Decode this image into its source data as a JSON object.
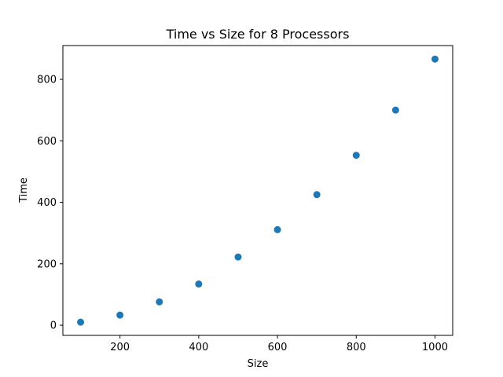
{
  "chart_data": {
    "type": "scatter",
    "title": "Time vs Size for 8 Processors",
    "xlabel": "Size",
    "ylabel": "Time",
    "x": [
      100,
      200,
      300,
      400,
      500,
      600,
      700,
      800,
      900,
      1000
    ],
    "y": [
      10,
      33,
      76,
      134,
      222,
      311,
      425,
      553,
      700,
      866
    ],
    "xlim": [
      55,
      1045
    ],
    "ylim": [
      -33,
      910
    ],
    "xticks": [
      200,
      400,
      600,
      800,
      1000
    ],
    "yticks": [
      0,
      200,
      400,
      600,
      800
    ],
    "grid": false,
    "marker_color": "#1f77b4"
  }
}
